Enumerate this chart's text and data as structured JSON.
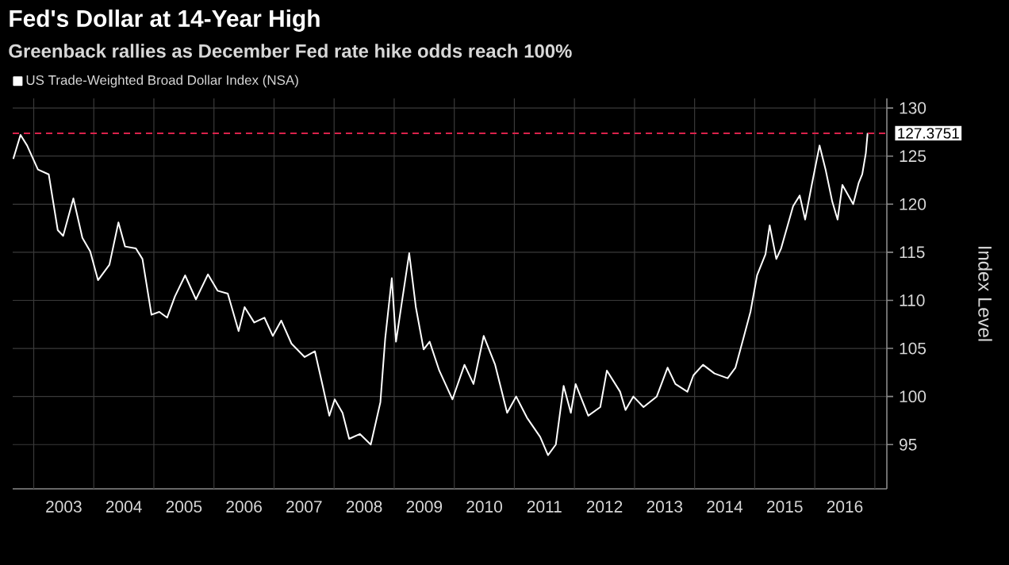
{
  "chart_data": {
    "type": "line",
    "title": "Fed's Dollar at 14-Year High",
    "subtitle": "Greenback rallies as December Fed rate hike odds reach 100%",
    "ylabel": "Index Level",
    "series": [
      {
        "name": "US Trade-Weighted Broad Dollar Index (NSA)",
        "color": "#ffffff",
        "x": [
          2002.66,
          2002.78,
          2002.89,
          2003.07,
          2003.25,
          2003.4,
          2003.49,
          2003.66,
          2003.81,
          2003.94,
          2004.07,
          2004.26,
          2004.41,
          2004.52,
          2004.7,
          2004.81,
          2004.96,
          2005.09,
          2005.22,
          2005.35,
          2005.52,
          2005.7,
          2005.9,
          2006.06,
          2006.23,
          2006.41,
          2006.51,
          2006.67,
          2006.84,
          2006.98,
          2007.12,
          2007.29,
          2007.51,
          2007.68,
          2007.81,
          2007.92,
          2008.01,
          2008.14,
          2008.25,
          2008.43,
          2008.61,
          2008.77,
          2008.85,
          2008.96,
          2009.03,
          2009.13,
          2009.25,
          2009.36,
          2009.49,
          2009.59,
          2009.75,
          2009.97,
          2010.17,
          2010.32,
          2010.49,
          2010.68,
          2010.88,
          2011.03,
          2011.21,
          2011.43,
          2011.56,
          2011.69,
          2011.82,
          2011.94,
          2012.02,
          2012.23,
          2012.43,
          2012.54,
          2012.76,
          2012.85,
          2012.98,
          2013.15,
          2013.37,
          2013.55,
          2013.68,
          2013.88,
          2013.98,
          2014.14,
          2014.33,
          2014.55,
          2014.68,
          2014.81,
          2014.93,
          2015.04,
          2015.18,
          2015.25,
          2015.36,
          2015.44,
          2015.64,
          2015.75,
          2015.84,
          2015.95,
          2016.08,
          2016.18,
          2016.29,
          2016.38,
          2016.46,
          2016.64,
          2016.73,
          2016.79,
          2016.85,
          2016.88
        ],
        "values": [
          124.7,
          127.2,
          126.1,
          123.6,
          123.1,
          117.3,
          116.7,
          120.6,
          116.5,
          115.1,
          112.1,
          113.7,
          118.1,
          115.6,
          115.4,
          114.3,
          108.5,
          108.8,
          108.2,
          110.4,
          112.6,
          110.1,
          112.7,
          111.0,
          110.7,
          106.8,
          109.3,
          107.7,
          108.2,
          106.3,
          107.9,
          105.5,
          104.1,
          104.7,
          101.1,
          98.0,
          99.7,
          98.3,
          95.6,
          96.1,
          95.0,
          99.4,
          106.0,
          112.3,
          105.7,
          109.9,
          114.9,
          109.3,
          104.9,
          105.7,
          102.7,
          99.7,
          103.3,
          101.3,
          106.3,
          103.3,
          98.3,
          100.0,
          97.8,
          95.8,
          93.9,
          95.0,
          101.1,
          98.3,
          101.3,
          98.0,
          98.9,
          102.7,
          100.5,
          98.6,
          100.0,
          98.9,
          100.0,
          103.0,
          101.3,
          100.5,
          102.2,
          103.3,
          102.4,
          101.9,
          103.0,
          106.0,
          108.8,
          112.6,
          114.8,
          117.8,
          114.3,
          115.4,
          119.8,
          120.9,
          118.4,
          122.0,
          126.1,
          123.6,
          120.3,
          118.4,
          122.0,
          120.0,
          122.2,
          123.1,
          125.3,
          127.4
        ]
      }
    ],
    "xlim": [
      2002.65,
      2017.2
    ],
    "ylim": [
      90.4,
      131
    ],
    "xticks": [
      {
        "value": 2003,
        "label": null
      },
      {
        "value": 2004,
        "label": null
      },
      {
        "value": 2005,
        "label": null
      },
      {
        "value": 2006,
        "label": null
      },
      {
        "value": 2007,
        "label": null
      },
      {
        "value": 2008,
        "label": null
      },
      {
        "value": 2009,
        "label": null
      },
      {
        "value": 2010,
        "label": null
      },
      {
        "value": 2011,
        "label": null
      },
      {
        "value": 2012,
        "label": null
      },
      {
        "value": 2013,
        "label": null
      },
      {
        "value": 2014,
        "label": null
      },
      {
        "value": 2015,
        "label": null
      },
      {
        "value": 2016,
        "label": null
      },
      {
        "value": 2017,
        "label": null
      },
      {
        "value": 2003.5,
        "label": "2003"
      },
      {
        "value": 2004.5,
        "label": "2004"
      },
      {
        "value": 2005.5,
        "label": "2005"
      },
      {
        "value": 2006.5,
        "label": "2006"
      },
      {
        "value": 2007.5,
        "label": "2007"
      },
      {
        "value": 2008.5,
        "label": "2008"
      },
      {
        "value": 2009.5,
        "label": "2009"
      },
      {
        "value": 2010.5,
        "label": "2010"
      },
      {
        "value": 2011.5,
        "label": "2011"
      },
      {
        "value": 2012.5,
        "label": "2012"
      },
      {
        "value": 2013.5,
        "label": "2013"
      },
      {
        "value": 2014.5,
        "label": "2014"
      },
      {
        "value": 2015.5,
        "label": "2015"
      },
      {
        "value": 2016.5,
        "label": "2016"
      }
    ],
    "yticks": [
      95,
      100,
      105,
      110,
      115,
      120,
      125,
      130
    ],
    "ref_lines": [
      {
        "axis": "y",
        "value": 127.3751,
        "label": "127.3751",
        "color": "#d9224b",
        "line_style": "dashed"
      }
    ],
    "grid": true,
    "legend": "top left"
  }
}
